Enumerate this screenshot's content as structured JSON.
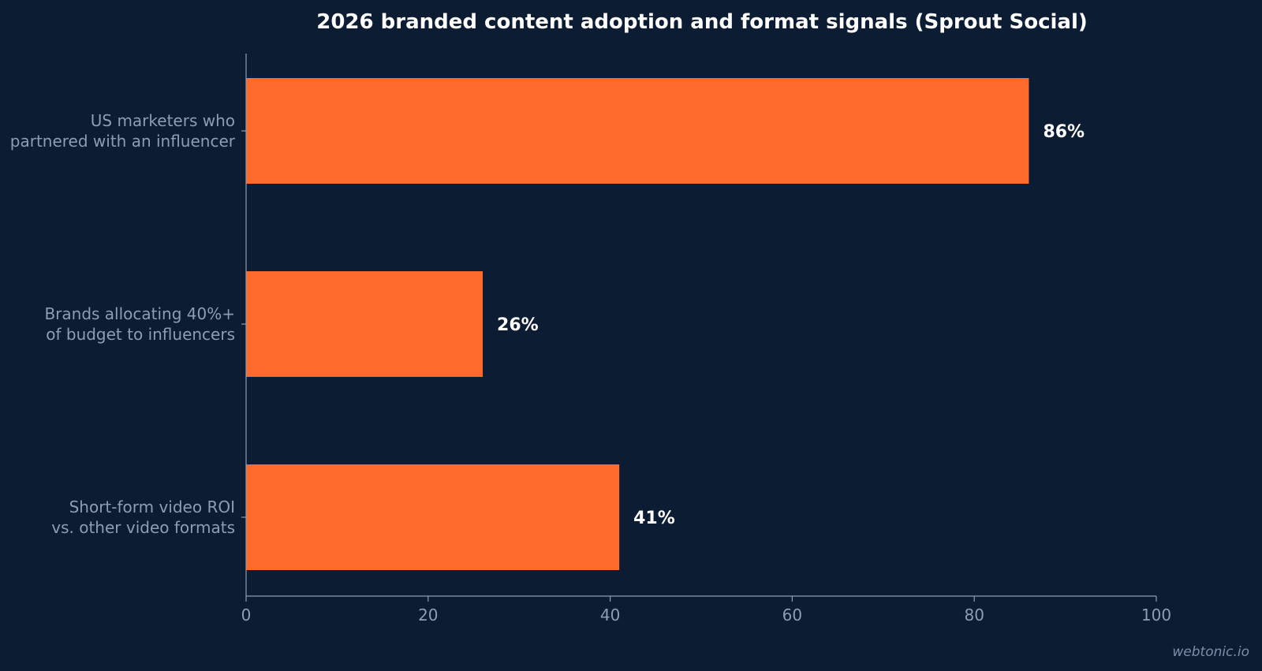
{
  "chart_data": {
    "type": "bar",
    "orientation": "horizontal",
    "title": "2026 branded content adoption and format signals (Sprout Social)",
    "categories": [
      [
        "US marketers who",
        "partnered with an influencer"
      ],
      [
        "Brands allocating 40%+",
        "of budget to influencers"
      ],
      [
        "Short-form video ROI",
        "vs. other video formats"
      ]
    ],
    "values": [
      86,
      26,
      41
    ],
    "value_labels": [
      "86%",
      "26%",
      "41%"
    ],
    "xlim": [
      0,
      100
    ],
    "xticks": [
      0,
      20,
      40,
      60,
      80,
      100
    ],
    "grid": false,
    "colors": {
      "background": "#0b1c33",
      "bar": "#ff6b2c",
      "axis": "#8f9db3",
      "label": "#8f9db3",
      "value": "#ffffff"
    }
  },
  "watermark": "webtonic.io"
}
